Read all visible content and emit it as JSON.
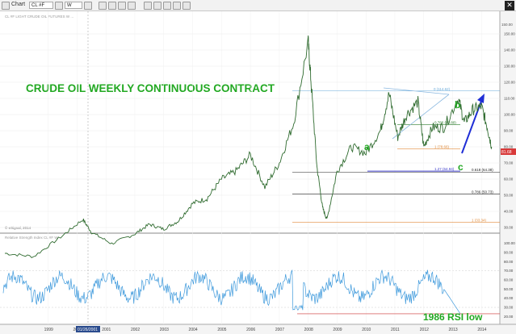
{
  "toolbar": {
    "window_label": "Chart",
    "symbol": "CL #F",
    "interval": "W"
  },
  "chart_data": {
    "type": "line",
    "title": "CRUDE OIL WEEKLY CONTINUOUS CONTRACT",
    "header_text": "CL #F LIGHT CRUDE OIL FUTURES  W  ...",
    "watermark": "© eSignal, 2014",
    "price_axis": {
      "ylim": [
        25,
        160
      ],
      "ticks": [
        30,
        40,
        50,
        60,
        70,
        80,
        90,
        100,
        110,
        120,
        130,
        140,
        150
      ],
      "last_price_label": "81.68",
      "scale_top_label": "150.00"
    },
    "x_axis": {
      "ticks": [
        "1999",
        "2000",
        "2001",
        "2002",
        "2003",
        "2004",
        "2005",
        "2006",
        "2007",
        "2008",
        "2009",
        "2010",
        "2011",
        "2012",
        "2013",
        "2014"
      ],
      "cursor_date": "01/26/2001"
    },
    "price_series": {
      "name": "CL #F weekly close",
      "x": [
        1998.0,
        1999.0,
        2000.0,
        2000.7,
        2001.0,
        2001.7,
        2002.5,
        2003.0,
        2003.5,
        2004.0,
        2004.5,
        2005.0,
        2005.5,
        2006.0,
        2006.5,
        2007.0,
        2007.5,
        2008.0,
        2008.5,
        2008.6,
        2008.8,
        2009.0,
        2009.15,
        2009.5,
        2010.0,
        2010.5,
        2011.0,
        2011.3,
        2011.6,
        2011.9,
        2012.3,
        2012.5,
        2012.8,
        2013.2,
        2013.7,
        2013.9,
        2014.2,
        2014.5,
        2014.7,
        2014.85
      ],
      "y": [
        14,
        12,
        25,
        35,
        27,
        20,
        26,
        32,
        29,
        34,
        45,
        48,
        60,
        65,
        75,
        55,
        70,
        95,
        145,
        120,
        68,
        42,
        35,
        65,
        80,
        76,
        90,
        113,
        86,
        100,
        108,
        80,
        92,
        92,
        110,
        95,
        103,
        105,
        92,
        80
      ]
    },
    "fibonacci_levels": [
      {
        "label": "0 (114.62)",
        "value": 114.62,
        "color": "#66a8d8"
      },
      {
        "label": "0.786 (93.80)",
        "value": 93.8,
        "color": "#2a7a2a"
      },
      {
        "label": "1 (78.66)",
        "value": 78.66,
        "color": "#e08a3a"
      },
      {
        "label": "1.27 (64.94)",
        "value": 64.94,
        "color": "#4040cc"
      },
      {
        "label": "0.618 (64.38)",
        "value": 64.38,
        "color": "#222222"
      },
      {
        "label": "0.786 (50.73)",
        "value": 50.73,
        "color": "#222222"
      },
      {
        "label": "1 (33.34)",
        "value": 33.34,
        "color": "#e08a3a"
      }
    ],
    "wave_labels": [
      "a",
      "b",
      "c"
    ],
    "rsi_panel": {
      "title": "Relative Strength Index  CL #F  W",
      "ylim": [
        15,
        105
      ],
      "ticks": [
        20,
        30,
        40,
        50,
        60,
        70,
        80,
        90,
        100
      ],
      "reference_levels": [
        30,
        70
      ],
      "last_value": 23,
      "annotation": "1986 RSI low"
    }
  }
}
